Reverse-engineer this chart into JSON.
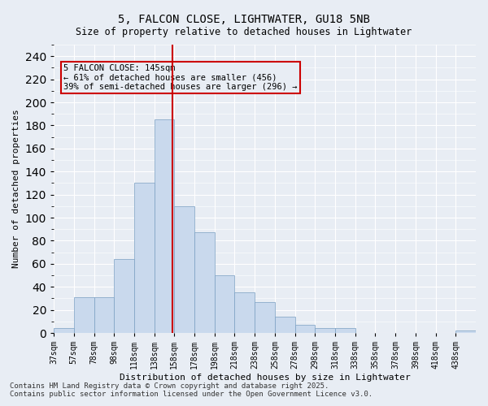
{
  "title1": "5, FALCON CLOSE, LIGHTWATER, GU18 5NB",
  "title2": "Size of property relative to detached houses in Lightwater",
  "xlabel": "Distribution of detached houses by size in Lightwater",
  "ylabel": "Number of detached properties",
  "annotation_line1": "5 FALCON CLOSE: 145sqm",
  "annotation_line2": "← 61% of detached houses are smaller (456)",
  "annotation_line3": "39% of semi-detached houses are larger (296) →",
  "property_size": 145,
  "bar_color": "#c9d9ed",
  "bar_edge_color": "#7a9fc2",
  "vline_color": "#cc0000",
  "annotation_box_color": "#cc0000",
  "background_color": "#e8edf4",
  "categories": [
    "37sqm",
    "57sqm",
    "78sqm",
    "98sqm",
    "118sqm",
    "138sqm",
    "158sqm",
    "178sqm",
    "198sqm",
    "218sqm",
    "238sqm",
    "258sqm",
    "278sqm",
    "298sqm",
    "318sqm",
    "338sqm",
    "358sqm",
    "378sqm",
    "398sqm",
    "418sqm",
    "438sqm"
  ],
  "bin_edges": [
    27,
    47,
    67,
    87,
    107,
    127,
    147,
    167,
    187,
    207,
    227,
    247,
    267,
    287,
    307,
    327,
    347,
    367,
    387,
    407,
    427,
    447
  ],
  "values": [
    4,
    31,
    31,
    64,
    130,
    185,
    110,
    87,
    50,
    35,
    27,
    14,
    7,
    4,
    4,
    0,
    0,
    0,
    0,
    0,
    2
  ],
  "ylim": [
    0,
    250
  ],
  "yticks": [
    0,
    20,
    40,
    60,
    80,
    100,
    120,
    140,
    160,
    180,
    200,
    220,
    240
  ],
  "footer1": "Contains HM Land Registry data © Crown copyright and database right 2025.",
  "footer2": "Contains public sector information licensed under the Open Government Licence v3.0."
}
